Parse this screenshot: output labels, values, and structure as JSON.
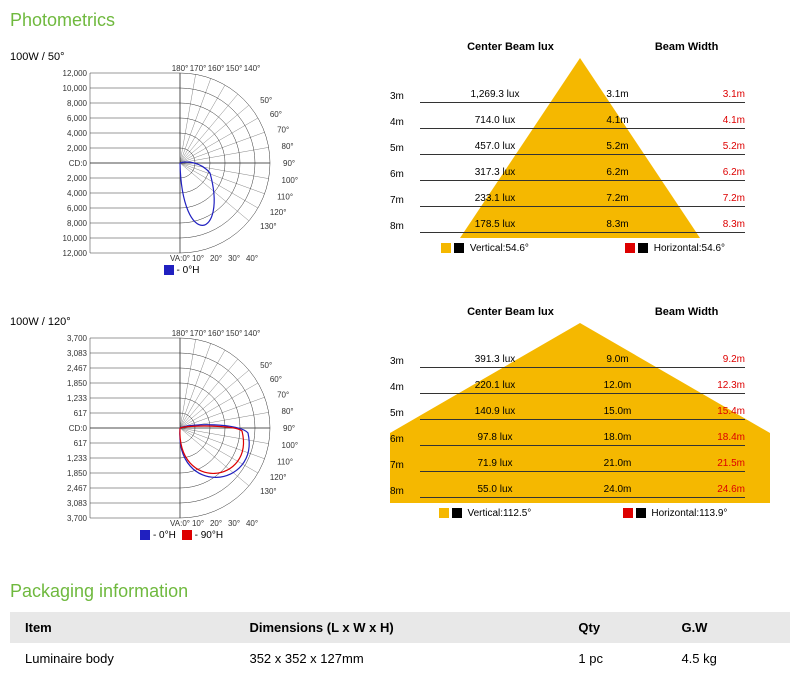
{
  "titles": {
    "photometrics": "Photometrics",
    "packaging": "Packaging information"
  },
  "variant1": {
    "label": "100W / 50°",
    "polar": {
      "ticks": [
        "12,000",
        "10,000",
        "8,000",
        "6,000",
        "4,000",
        "2,000",
        "CD:0",
        "2,000",
        "4,000",
        "6,000",
        "8,000",
        "10,000",
        "12,000"
      ],
      "topAngles": [
        "180°",
        "170°",
        "160°",
        "150°",
        "140°"
      ],
      "rightAngles": [
        "130°",
        "120°",
        "110°",
        "100°",
        "90°",
        "80°",
        "70°",
        "60°",
        "50°"
      ],
      "botAngles": [
        "VA:0°",
        "10°",
        "20°",
        "30°",
        "40°"
      ],
      "legend": [
        {
          "color": "#2020c0",
          "label": "- 0°H"
        }
      ],
      "curveColor": "#2020c0",
      "curve2Color": null
    },
    "beam": {
      "headers": {
        "c": "Center Beam lux",
        "w": "Beam Width"
      },
      "triangleColor": "#f5b800",
      "triangleShape": "narrow",
      "rows": [
        {
          "d": "3m",
          "lux": "1,269.3 lux",
          "v": "3.1m",
          "h": "3.1m"
        },
        {
          "d": "4m",
          "lux": "714.0 lux",
          "v": "4.1m",
          "h": "4.1m"
        },
        {
          "d": "5m",
          "lux": "457.0 lux",
          "v": "5.2m",
          "h": "5.2m"
        },
        {
          "d": "6m",
          "lux": "317.3 lux",
          "v": "6.2m",
          "h": "6.2m"
        },
        {
          "d": "7m",
          "lux": "233.1 lux",
          "v": "7.2m",
          "h": "7.2m"
        },
        {
          "d": "8m",
          "lux": "178.5 lux",
          "v": "8.3m",
          "h": "8.3m"
        }
      ],
      "legend": {
        "vcolor": "#f5b800",
        "vlabel": "Vertical:54.6°",
        "hcolor": "#d00",
        "hlabel": "Horizontal:54.6°"
      }
    }
  },
  "variant2": {
    "label": "100W / 120°",
    "polar": {
      "ticks": [
        "3,700",
        "3,083",
        "2,467",
        "1,850",
        "1,233",
        "617",
        "CD:0",
        "617",
        "1,233",
        "1,850",
        "2,467",
        "3,083",
        "3,700"
      ],
      "topAngles": [
        "180°",
        "170°",
        "160°",
        "150°",
        "140°"
      ],
      "rightAngles": [
        "130°",
        "120°",
        "110°",
        "100°",
        "90°",
        "80°",
        "70°",
        "60°",
        "50°"
      ],
      "botAngles": [
        "VA:0°",
        "10°",
        "20°",
        "30°",
        "40°"
      ],
      "legend": [
        {
          "color": "#2020c0",
          "label": "- 0°H"
        },
        {
          "color": "#d00",
          "label": "- 90°H"
        }
      ],
      "curveColor": "#2020c0",
      "curve2Color": "#d00"
    },
    "beam": {
      "headers": {
        "c": "Center Beam lux",
        "w": "Beam Width"
      },
      "triangleColor": "#f5b800",
      "triangleShape": "wide",
      "rows": [
        {
          "d": "3m",
          "lux": "391.3 lux",
          "v": "9.0m",
          "h": "9.2m"
        },
        {
          "d": "4m",
          "lux": "220.1 lux",
          "v": "12.0m",
          "h": "12.3m"
        },
        {
          "d": "5m",
          "lux": "140.9 lux",
          "v": "15.0m",
          "h": "15.4m"
        },
        {
          "d": "6m",
          "lux": "97.8 lux",
          "v": "18.0m",
          "h": "18.4m"
        },
        {
          "d": "7m",
          "lux": "71.9 lux",
          "v": "21.0m",
          "h": "21.5m"
        },
        {
          "d": "8m",
          "lux": "55.0 lux",
          "v": "24.0m",
          "h": "24.6m"
        }
      ],
      "legend": {
        "vcolor": "#f5b800",
        "vlabel": "Vertical:112.5°",
        "hcolor": "#d00",
        "hlabel": "Horizontal:113.9°"
      }
    }
  },
  "packaging": {
    "headers": [
      "Item",
      "Dimensions (L x W x H)",
      "Qty",
      "G.W"
    ],
    "row": [
      "Luminaire body",
      "352 x 352 x 127mm",
      "1 pc",
      "4.5 kg"
    ]
  }
}
